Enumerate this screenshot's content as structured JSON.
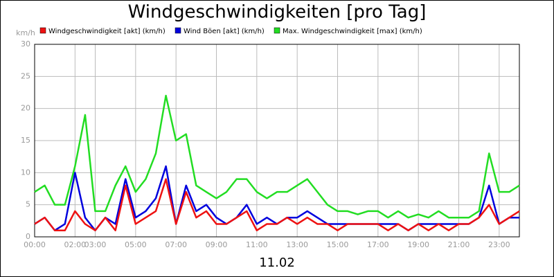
{
  "chart_data": {
    "type": "line",
    "title": "Windgeschwindigkeiten [pro Tag]",
    "subtitle": "11.02",
    "y_unit": "km/h",
    "x": [
      0,
      0.5,
      1,
      1.5,
      2,
      2.5,
      3,
      3.5,
      4,
      4.5,
      5,
      5.5,
      6,
      6.5,
      7,
      7.5,
      8,
      8.5,
      9,
      9.5,
      10,
      10.5,
      11,
      11.5,
      12,
      12.5,
      13,
      13.5,
      14,
      14.5,
      15,
      15.5,
      16,
      16.5,
      17,
      17.5,
      18,
      18.5,
      19,
      19.5,
      20,
      20.5,
      21,
      21.5,
      22,
      22.5,
      23,
      23.5,
      24
    ],
    "series": [
      {
        "name": "Max. Windgeschwindigkeit [max] (km/h)",
        "color": "#22dd22",
        "values": [
          7,
          8,
          5,
          5,
          11,
          19,
          4,
          4,
          8,
          11,
          7,
          9,
          13,
          22,
          15,
          16,
          8,
          7,
          6,
          7,
          9,
          9,
          7,
          6,
          7,
          7,
          8,
          9,
          7,
          5,
          4,
          4,
          3.5,
          4,
          4,
          3,
          4,
          3,
          3.5,
          3,
          4,
          3,
          3,
          3,
          4,
          13,
          7,
          7,
          8
        ]
      },
      {
        "name": "Wind Böen [akt] (km/h)",
        "color": "#0000dd",
        "values": [
          2,
          3,
          1,
          2,
          10,
          3,
          1,
          3,
          2,
          9,
          3,
          4,
          6,
          11,
          2,
          8,
          4,
          5,
          3,
          2,
          3,
          5,
          2,
          3,
          2,
          3,
          3,
          4,
          3,
          2,
          2,
          2,
          2,
          2,
          2,
          2,
          2,
          1,
          2,
          2,
          2,
          2,
          2,
          2,
          3,
          8,
          2,
          3,
          3
        ]
      },
      {
        "name": "Windgeschwindigkeit [akt] (km/h)",
        "color": "#ee1111",
        "values": [
          2,
          3,
          1,
          1,
          4,
          2,
          1,
          3,
          1,
          8,
          2,
          3,
          4,
          9,
          2,
          7,
          3,
          4,
          2,
          2,
          3,
          4,
          1,
          2,
          2,
          3,
          2,
          3,
          2,
          2,
          1,
          2,
          2,
          2,
          2,
          1,
          2,
          1,
          2,
          1,
          2,
          1,
          2,
          2,
          3,
          5,
          2,
          3,
          4
        ]
      }
    ],
    "xlim": [
      0,
      24
    ],
    "xticks": [
      {
        "value": 0,
        "label": "00:00"
      },
      {
        "value": 2,
        "label": "02:00"
      },
      {
        "value": 3,
        "label": "03:00"
      },
      {
        "value": 5,
        "label": "05:00"
      },
      {
        "value": 7,
        "label": "07:00"
      },
      {
        "value": 9,
        "label": "09:00"
      },
      {
        "value": 11,
        "label": "11:00"
      },
      {
        "value": 13,
        "label": "13:00"
      },
      {
        "value": 15,
        "label": "15:00"
      },
      {
        "value": 17,
        "label": "17:00"
      },
      {
        "value": 19,
        "label": "19:00"
      },
      {
        "value": 21,
        "label": "21:00"
      },
      {
        "value": 23,
        "label": "23:00"
      }
    ],
    "ylim": [
      0,
      30
    ],
    "yticks": [
      0,
      5,
      10,
      15,
      20,
      25,
      30
    ],
    "grid": true
  }
}
